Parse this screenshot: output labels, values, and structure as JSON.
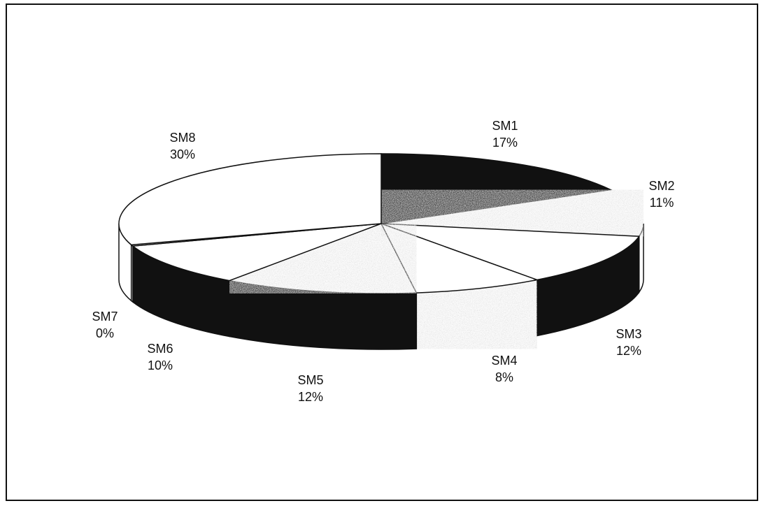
{
  "chart_data": {
    "type": "pie",
    "style": "3d-exploded-perspective",
    "legend": "none",
    "data_labels": "category-and-percent",
    "slices": [
      {
        "label": "SM1",
        "percent_label": "17%",
        "value": 17,
        "fill": "solid-black"
      },
      {
        "label": "SM2",
        "percent_label": "11%",
        "value": 11,
        "fill": "gray-speckle"
      },
      {
        "label": "SM3",
        "percent_label": "12%",
        "value": 12,
        "fill": "white"
      },
      {
        "label": "SM4",
        "percent_label": "8%",
        "value": 8,
        "fill": "white"
      },
      {
        "label": "SM5",
        "percent_label": "12%",
        "value": 12,
        "fill": "gray-speckle"
      },
      {
        "label": "SM6",
        "percent_label": "10%",
        "value": 10,
        "fill": "white"
      },
      {
        "label": "SM7",
        "percent_label": "0%",
        "value": 0.3,
        "fill": "white"
      },
      {
        "label": "SM8",
        "percent_label": "30%",
        "value": 30,
        "fill": "white"
      }
    ],
    "side_colors": {
      "SM1": "#111111",
      "SM2": "#ffffff",
      "SM3": "#111111",
      "SM4": "#cfcfcf",
      "SM5": "#111111",
      "SM6": "#111111",
      "SM7": "#ffffff",
      "SM8": "#ffffff"
    },
    "top_colors": {
      "SM1": "#111111",
      "SM2": "#d8d8d8",
      "SM3": "#ffffff",
      "SM4": "#ffffff",
      "SM5": "#d8d8d8",
      "SM6": "#ffffff",
      "SM7": "#ffffff",
      "SM8": "#ffffff"
    }
  }
}
